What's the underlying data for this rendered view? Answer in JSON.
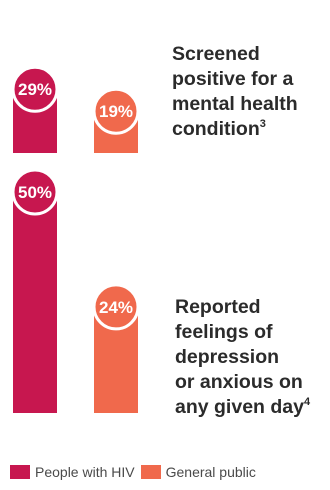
{
  "colors": {
    "people_with_hiv": "#C7174F",
    "general_public": "#F0694C"
  },
  "chart_data": [
    {
      "type": "bar",
      "title_lines": [
        "Screened",
        "positive for a",
        "mental health",
        "condition"
      ],
      "title_superscript": "3",
      "series": [
        {
          "name": "People with HIV",
          "values": [
            29
          ],
          "labels": [
            "29%"
          ]
        },
        {
          "name": "General public",
          "values": [
            19
          ],
          "labels": [
            "19%"
          ]
        }
      ],
      "ylim": [
        0,
        50
      ],
      "grid": false
    },
    {
      "type": "bar",
      "title_lines": [
        "Reported",
        "feelings of",
        "depression",
        "or anxious on",
        "any given day"
      ],
      "title_superscript": "4",
      "series": [
        {
          "name": "People with HIV",
          "values": [
            50
          ],
          "labels": [
            "50%"
          ]
        },
        {
          "name": "General public",
          "values": [
            24
          ],
          "labels": [
            "24%"
          ]
        }
      ],
      "ylim": [
        0,
        50
      ],
      "grid": false
    }
  ],
  "legend": {
    "placement": "bottom-left",
    "items": [
      {
        "label": "People with HIV",
        "color": "#C7174F"
      },
      {
        "label": "General public",
        "color": "#F0694C"
      }
    ]
  }
}
